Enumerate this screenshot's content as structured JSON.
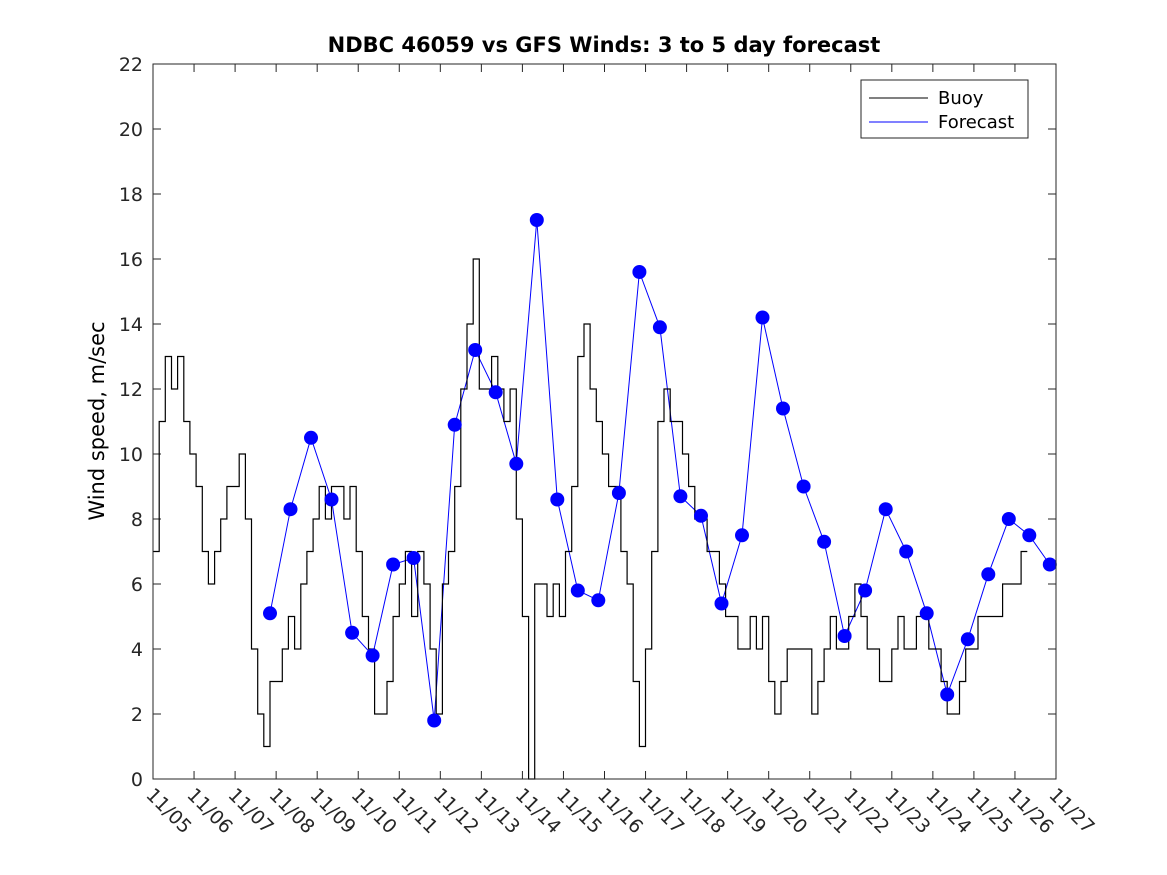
{
  "chart_data": {
    "type": "line",
    "title": "NDBC 46059 vs GFS Winds: 3 to 5 day forecast",
    "xlabel": "",
    "ylabel": "Wind speed, m/sec",
    "xlim": [
      0,
      22
    ],
    "ylim": [
      0,
      22
    ],
    "yticks": [
      0,
      2,
      4,
      6,
      8,
      10,
      12,
      14,
      16,
      18,
      20,
      22
    ],
    "xticks": [
      "11/05",
      "11/06",
      "11/07",
      "11/08",
      "11/09",
      "11/10",
      "11/11",
      "11/12",
      "11/13",
      "11/14",
      "11/15",
      "11/16",
      "11/17",
      "11/18",
      "11/19",
      "11/20",
      "11/21",
      "11/22",
      "11/23",
      "11/24",
      "11/25",
      "11/26",
      "11/27"
    ],
    "legend": {
      "position": "top-right",
      "entries": [
        "Buoy",
        "Forecast"
      ]
    },
    "colors": {
      "buoy": "#000000",
      "forecast": "#0000ff",
      "markers": "#0000ff"
    },
    "buoy": {
      "name": "Buoy",
      "x": [
        0,
        0.15,
        0.3,
        0.45,
        0.6,
        0.75,
        0.9,
        1.05,
        1.2,
        1.35,
        1.5,
        1.65,
        1.8,
        1.95,
        2.1,
        2.25,
        2.4,
        2.55,
        2.7,
        2.85,
        3.0,
        3.15,
        3.3,
        3.45,
        3.6,
        3.75,
        3.9,
        4.05,
        4.2,
        4.35,
        4.5,
        4.65,
        4.8,
        4.95,
        5.1,
        5.25,
        5.4,
        5.55,
        5.7,
        5.85,
        6.0,
        6.15,
        6.3,
        6.45,
        6.6,
        6.75,
        6.9,
        7.05,
        7.2,
        7.35,
        7.5,
        7.65,
        7.8,
        7.95,
        8.1,
        8.25,
        8.4,
        8.55,
        8.7,
        8.85,
        9.0,
        9.15,
        9.3,
        9.45,
        9.6,
        9.75,
        9.9,
        10.05,
        10.2,
        10.35,
        10.5,
        10.65,
        10.8,
        10.95,
        11.1,
        11.25,
        11.4,
        11.55,
        11.7,
        11.85,
        12.0,
        12.15,
        12.3,
        12.45,
        12.6,
        12.75,
        12.9,
        13.05,
        13.2,
        13.35,
        13.5,
        13.65,
        13.8,
        13.95,
        14.1,
        14.25,
        14.4,
        14.55,
        14.7,
        14.85,
        15.0,
        15.15,
        15.3,
        15.45,
        15.6,
        15.75,
        15.9,
        16.05,
        16.2,
        16.35,
        16.5,
        16.65,
        16.8,
        16.95,
        17.1,
        17.25,
        17.4,
        17.55,
        17.7,
        17.85,
        18.0,
        18.15,
        18.3,
        18.45,
        18.6,
        18.75,
        18.9,
        19.05,
        19.2,
        19.35,
        19.5,
        19.65,
        19.8,
        19.95,
        20.1,
        20.25,
        20.4,
        20.55,
        20.7,
        20.85,
        21.0,
        21.15,
        21.3
      ],
      "values": [
        7,
        11,
        13,
        12,
        13,
        11,
        10,
        9,
        7,
        6,
        7,
        8,
        9,
        9,
        10,
        8,
        4,
        2,
        1,
        3,
        3,
        4,
        5,
        4,
        6,
        7,
        8,
        9,
        8,
        9,
        9,
        8,
        9,
        7,
        5,
        4,
        2,
        2,
        3,
        5,
        6,
        7,
        5,
        7,
        6,
        4,
        2,
        6,
        7,
        9,
        12,
        14,
        16,
        12,
        12,
        13,
        12,
        11,
        12,
        8,
        5,
        0,
        6,
        6,
        5,
        6,
        5,
        7,
        9,
        13,
        14,
        12,
        11,
        10,
        9,
        9,
        7,
        6,
        3,
        1,
        4,
        7,
        11,
        12,
        11,
        11,
        10,
        9,
        8,
        8,
        7,
        7,
        6,
        5,
        5,
        4,
        4,
        5,
        4,
        5,
        3,
        2,
        3,
        4,
        4,
        4,
        4,
        2,
        3,
        4,
        5,
        4,
        4,
        5,
        6,
        5,
        4,
        4,
        3,
        3,
        4,
        5,
        4,
        4,
        5,
        5,
        4,
        4,
        3,
        2,
        2,
        3,
        4,
        4,
        5,
        5,
        5,
        5,
        6,
        6,
        6,
        7,
        7
      ]
    },
    "forecast_points": {
      "name": "Forecast",
      "x": [
        2.85,
        3.35,
        3.85,
        4.35,
        4.85,
        5.35,
        5.85,
        6.35,
        6.85,
        7.35,
        7.85,
        8.35,
        8.85,
        9.35,
        9.85,
        10.35,
        10.85,
        11.35,
        11.85,
        12.35,
        12.85,
        13.35,
        13.85,
        14.35,
        14.85,
        15.35,
        15.85,
        16.35,
        16.85,
        17.35,
        17.85,
        18.35,
        18.85,
        19.35,
        19.85,
        20.35,
        20.85,
        21.35,
        21.85
      ],
      "values": [
        5.1,
        8.3,
        10.5,
        8.6,
        4.5,
        3.8,
        6.6,
        6.8,
        1.8,
        10.9,
        13.2,
        11.9,
        9.7,
        17.2,
        8.6,
        5.8,
        5.5,
        8.8,
        15.6,
        13.9,
        8.7,
        8.1,
        5.4,
        7.5,
        14.2,
        11.4,
        9.0,
        7.3,
        4.4,
        5.8,
        8.3,
        7.0,
        5.1,
        2.6,
        4.3,
        6.3,
        8.0,
        7.5,
        6.6
      ]
    }
  }
}
